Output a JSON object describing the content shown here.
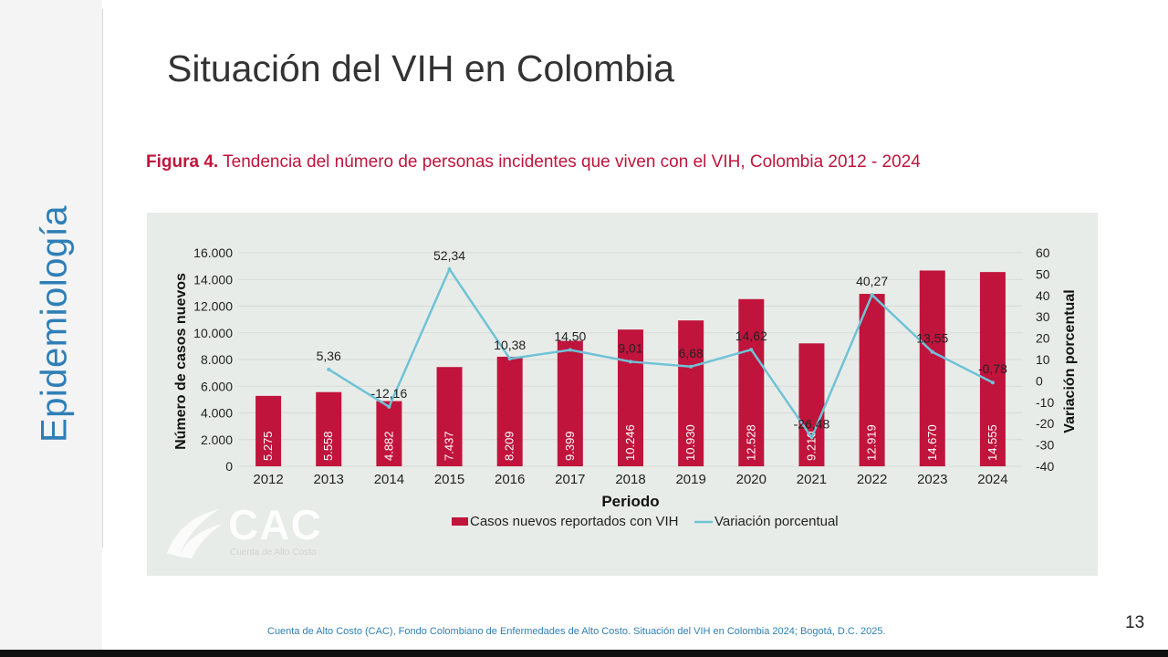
{
  "slide": {
    "section": "Epidemiología",
    "title": "Situación del VIH en Colombia",
    "figure_label": "Figura 4.",
    "figure_title": "Tendencia del número de personas incidentes que viven con el VIH, Colombia 2012 - 2024",
    "footer": "Cuenta de Alto Costo (CAC), Fondo Colombiano de Enfermedades de Alto Costo. Situación del VIH en Colombia 2024; Bogotá, D.C. 2025.",
    "page_number": "13",
    "logo_text": "CAC",
    "logo_subtext": "Cuenta de Alto Costo"
  },
  "chart_data": {
    "type": "bar",
    "categories": [
      "2012",
      "2013",
      "2014",
      "2015",
      "2016",
      "2017",
      "2018",
      "2019",
      "2020",
      "2021",
      "2022",
      "2023",
      "2024"
    ],
    "xlabel": "Periodo",
    "ylabel": "Número  de casos nuevos",
    "y2label": "Variación porcentual",
    "ylim": [
      0,
      16000
    ],
    "y2lim": [
      -40,
      60
    ],
    "yticks": [
      "0",
      "2.000",
      "4.000",
      "6.000",
      "8.000",
      "10.000",
      "12.000",
      "14.000",
      "16.000"
    ],
    "y2ticks": [
      "-40",
      "-30",
      "-20",
      "-10",
      "0",
      "10",
      "20",
      "30",
      "40",
      "50",
      "60"
    ],
    "series": [
      {
        "name": "Casos nuevos reportados con VIH",
        "type": "bar",
        "color": "#c0143c",
        "values": [
          5275,
          5558,
          4882,
          7437,
          8209,
          9399,
          10246,
          10930,
          12528,
          9210,
          12919,
          14670,
          14555
        ],
        "labels": [
          "5.275",
          "5.558",
          "4.882",
          "7.437",
          "8.209",
          "9.399",
          "10.246",
          "10.930",
          "12.528",
          "9.210",
          "12.919",
          "14.670",
          "14.555"
        ]
      },
      {
        "name": "Variación porcentual",
        "type": "line",
        "axis": "right",
        "color": "#6fc3d6",
        "values": [
          5.36,
          -12.16,
          52.34,
          10.38,
          14.5,
          9.01,
          6.68,
          14.62,
          -26.48,
          40.27,
          13.55,
          -0.78
        ],
        "x": [
          "2013",
          "2014",
          "2015",
          "2016",
          "2017",
          "2018",
          "2019",
          "2020",
          "2021",
          "2022",
          "2023",
          "2024"
        ],
        "labels": [
          "5,36",
          "-12,16",
          "52,34",
          "10,38",
          "14,50",
          "9,01",
          "6,68",
          "14,62",
          "-26,48",
          "40,27",
          "13,55",
          "-0,78"
        ]
      }
    ],
    "legend": "bottom"
  }
}
